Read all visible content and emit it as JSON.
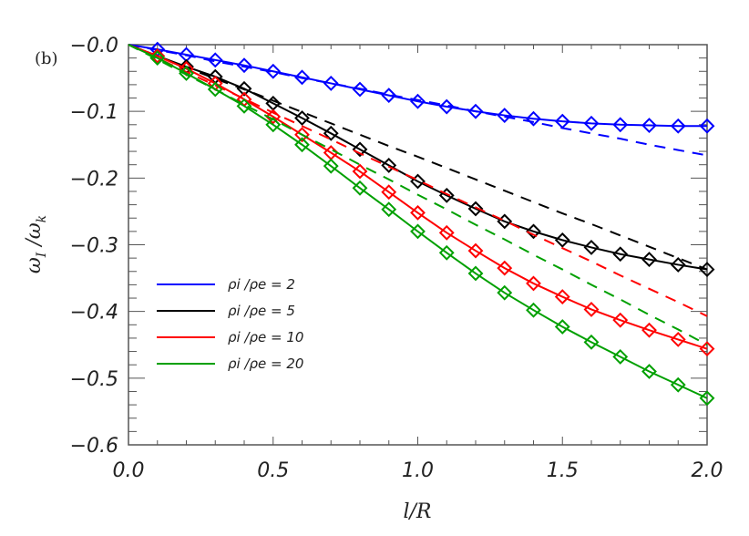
{
  "panel_label": "(b)",
  "chart_data": {
    "type": "line",
    "title": "",
    "xlabel": "l/R",
    "ylabel": "ω_I / ω_k",
    "xlim": [
      0.0,
      2.0
    ],
    "ylim": [
      -0.6,
      0.0
    ],
    "xticks": [
      "0.0",
      "0.5",
      "1.0",
      "1.5",
      "2.0"
    ],
    "yticks": [
      "-0.0",
      "-0.1",
      "-0.2",
      "-0.3",
      "-0.4",
      "-0.5",
      "-0.6"
    ],
    "grid": false,
    "legend_position": "lower left (inside)",
    "x": [
      0.0,
      0.1,
      0.2,
      0.3,
      0.4,
      0.5,
      0.6,
      0.7,
      0.8,
      0.9,
      1.0,
      1.1,
      1.2,
      1.3,
      1.4,
      1.5,
      1.6,
      1.7,
      1.8,
      1.9,
      2.0
    ],
    "series": [
      {
        "name": "ρi/ρe = 2",
        "color": "#0000ff",
        "solid": [
          0.0,
          -0.007,
          -0.015,
          -0.023,
          -0.031,
          -0.04,
          -0.049,
          -0.058,
          -0.067,
          -0.076,
          -0.085,
          -0.093,
          -0.1,
          -0.106,
          -0.111,
          -0.115,
          -0.118,
          -0.12,
          -0.121,
          -0.122,
          -0.122
        ],
        "dashed": [
          0.0,
          -0.008,
          -0.016,
          -0.025,
          -0.033,
          -0.041,
          -0.05,
          -0.058,
          -0.066,
          -0.075,
          -0.083,
          -0.091,
          -0.1,
          -0.108,
          -0.116,
          -0.125,
          -0.133,
          -0.141,
          -0.15,
          -0.158,
          -0.166
        ]
      },
      {
        "name": "ρi/ρe = 5",
        "color": "#000000",
        "solid": [
          0.0,
          -0.017,
          -0.033,
          -0.048,
          -0.066,
          -0.088,
          -0.11,
          -0.133,
          -0.157,
          -0.181,
          -0.205,
          -0.226,
          -0.246,
          -0.265,
          -0.28,
          -0.293,
          -0.304,
          -0.314,
          -0.322,
          -0.33,
          -0.337
        ],
        "dashed": [
          0.0,
          -0.017,
          -0.034,
          -0.051,
          -0.067,
          -0.084,
          -0.101,
          -0.118,
          -0.135,
          -0.152,
          -0.168,
          -0.185,
          -0.202,
          -0.219,
          -0.236,
          -0.253,
          -0.269,
          -0.286,
          -0.303,
          -0.32,
          -0.337
        ]
      },
      {
        "name": "ρi/ρe = 10",
        "color": "#ff0000",
        "solid": [
          0.0,
          -0.017,
          -0.036,
          -0.058,
          -0.082,
          -0.108,
          -0.135,
          -0.162,
          -0.19,
          -0.221,
          -0.252,
          -0.282,
          -0.309,
          -0.335,
          -0.358,
          -0.378,
          -0.397,
          -0.413,
          -0.428,
          -0.442,
          -0.456
        ],
        "dashed": [
          0.0,
          -0.02,
          -0.041,
          -0.061,
          -0.081,
          -0.102,
          -0.122,
          -0.142,
          -0.163,
          -0.183,
          -0.203,
          -0.224,
          -0.244,
          -0.264,
          -0.285,
          -0.305,
          -0.325,
          -0.346,
          -0.366,
          -0.386,
          -0.407
        ]
      },
      {
        "name": "ρi/ρe = 20",
        "color": "#00a000",
        "solid": [
          0.0,
          -0.02,
          -0.043,
          -0.067,
          -0.092,
          -0.12,
          -0.15,
          -0.182,
          -0.215,
          -0.247,
          -0.28,
          -0.312,
          -0.343,
          -0.372,
          -0.398,
          -0.423,
          -0.446,
          -0.468,
          -0.49,
          -0.51,
          -0.53
        ],
        "dashed": [
          0.0,
          -0.022,
          -0.045,
          -0.067,
          -0.09,
          -0.112,
          -0.135,
          -0.157,
          -0.18,
          -0.202,
          -0.225,
          -0.247,
          -0.27,
          -0.292,
          -0.315,
          -0.337,
          -0.36,
          -0.382,
          -0.405,
          -0.427,
          -0.45
        ]
      }
    ]
  },
  "legend": [
    {
      "label": "ρi /ρe = 2",
      "color": "#0000ff"
    },
    {
      "label": "ρi /ρe = 5",
      "color": "#000000"
    },
    {
      "label": "ρi /ρe = 10",
      "color": "#ff0000"
    },
    {
      "label": "ρi /ρe = 20",
      "color": "#00a000"
    }
  ],
  "axes": {
    "xlabel": "l/R",
    "ylabel_main": "ω",
    "ylabel_sub1": "I",
    "ylabel_sub2": "k"
  }
}
